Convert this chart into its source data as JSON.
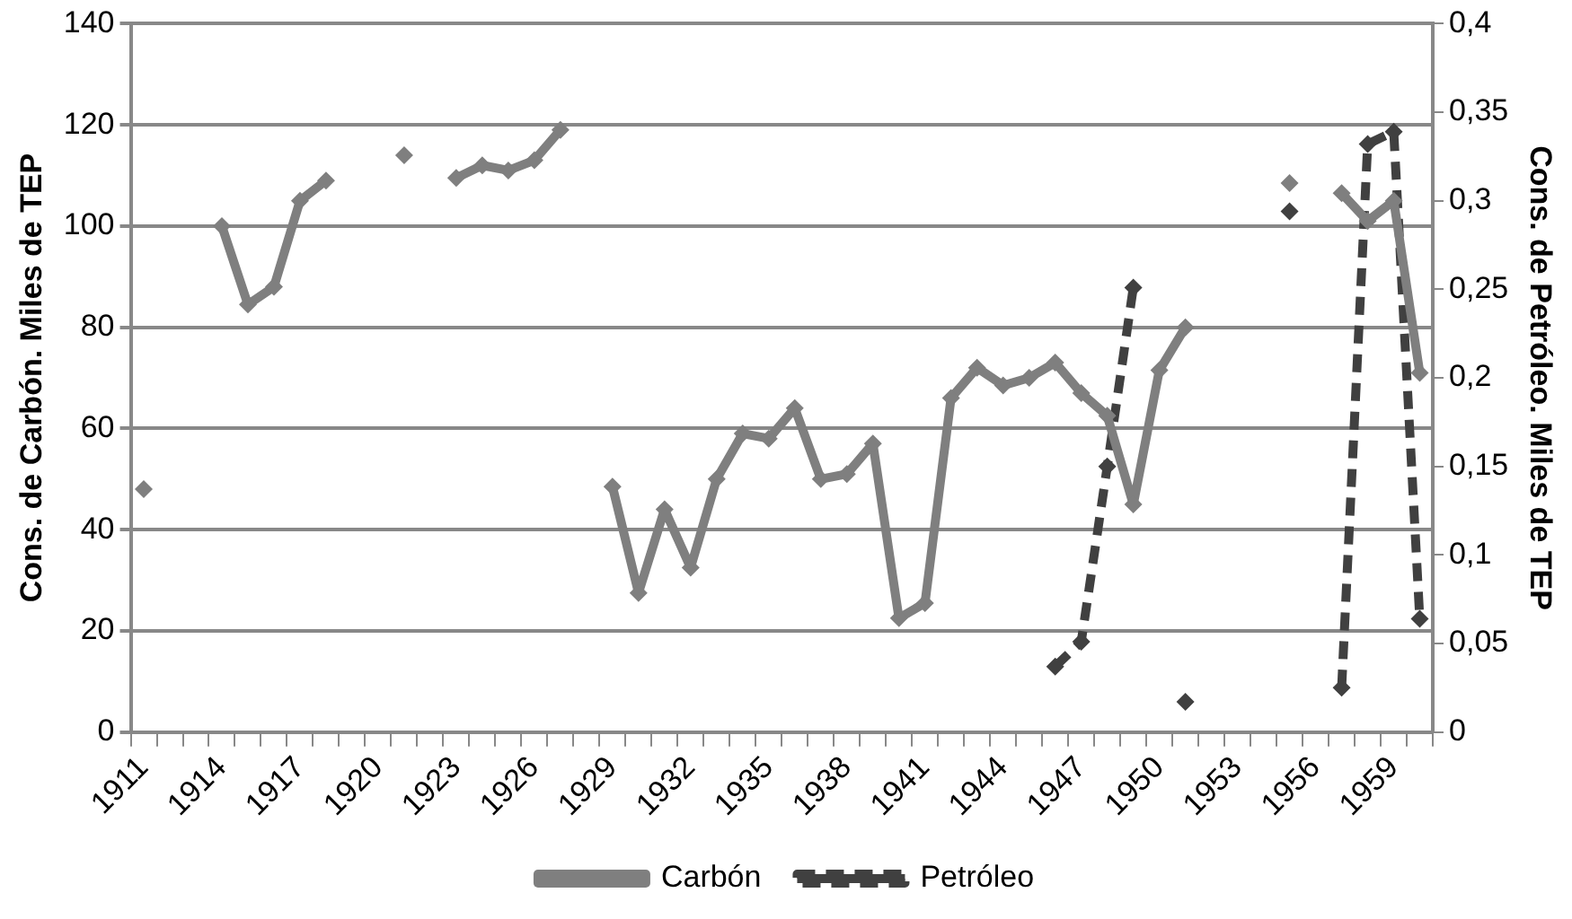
{
  "chart_data": {
    "type": "line",
    "xlabel": null,
    "ylabel": "Cons. de Carbón. Miles de TEP",
    "y2label": "Cons. de Petróleo. Miles de TEP",
    "categories": [
      "1911",
      null,
      null,
      "1914",
      null,
      null,
      "1917",
      null,
      null,
      "1920",
      null,
      null,
      "1923",
      null,
      null,
      "1926",
      null,
      null,
      "1929",
      null,
      null,
      "1932",
      null,
      null,
      "1935",
      null,
      null,
      "1938",
      null,
      null,
      "1941",
      null,
      null,
      "1944",
      null,
      null,
      "1947",
      null,
      null,
      "1950",
      null,
      null,
      "1953",
      null,
      null,
      "1956",
      null,
      null,
      "1959",
      null
    ],
    "series": [
      {
        "name": "Carbón",
        "color": "#7f7f7f",
        "line_style": "solid",
        "values": [
          48,
          null,
          null,
          100,
          84.5,
          88,
          105,
          109,
          null,
          null,
          114,
          null,
          109.5,
          112,
          111,
          113,
          119,
          null,
          48.5,
          27.5,
          44,
          32.5,
          50,
          59,
          58,
          64,
          50,
          51,
          57,
          22.5,
          25.5,
          66,
          72,
          68.5,
          70,
          73,
          67,
          62.5,
          45,
          71.5,
          80,
          null,
          null,
          null,
          108.5,
          null,
          106.5,
          101,
          105,
          71
        ]
      },
      {
        "name": "Petróleo",
        "color": "#404040",
        "line_style": "dashed",
        "axis": "y2",
        "values": [
          null,
          null,
          null,
          null,
          null,
          null,
          null,
          null,
          null,
          null,
          null,
          null,
          null,
          null,
          null,
          null,
          null,
          null,
          null,
          null,
          null,
          null,
          null,
          null,
          null,
          null,
          null,
          null,
          null,
          null,
          null,
          null,
          null,
          null,
          null,
          0.037,
          0.051,
          0.15,
          0.251,
          null,
          0.017,
          null,
          null,
          null,
          0.294,
          null,
          0.025,
          0.332,
          0.339,
          0.064
        ]
      }
    ],
    "ylim": [
      0,
      140
    ],
    "yticks": [
      0,
      20,
      40,
      60,
      80,
      100,
      120,
      140
    ],
    "y2lim": [
      0,
      0.4
    ],
    "y2ticks": [
      {
        "value": 0,
        "label": "0"
      },
      {
        "value": 0.05,
        "label": "0,05"
      },
      {
        "value": 0.1,
        "label": "0,1"
      },
      {
        "value": 0.15,
        "label": "0,15"
      },
      {
        "value": 0.2,
        "label": "0,2"
      },
      {
        "value": 0.25,
        "label": "0,25"
      },
      {
        "value": 0.3,
        "label": "0,3"
      },
      {
        "value": 0.35,
        "label": "0,35"
      },
      {
        "value": 0.4,
        "label": "0,4"
      }
    ],
    "grid": "y",
    "legend": "bottom",
    "marker": "diamond"
  }
}
